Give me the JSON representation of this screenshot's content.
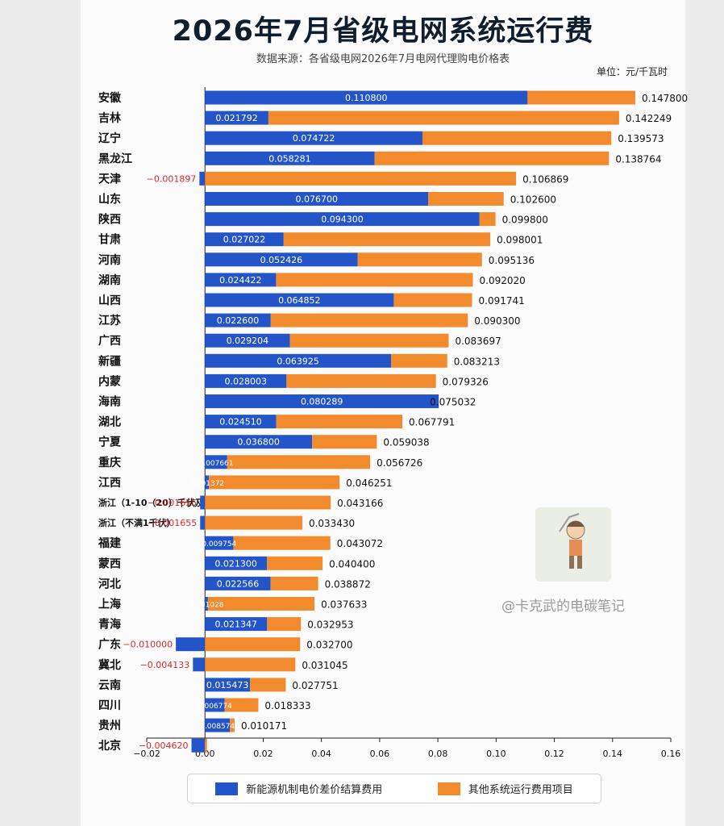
{
  "chart_data": {
    "type": "bar",
    "stacked": true,
    "orientation": "horizontal",
    "title": "2026年7月省级电网系统运行费",
    "subtitle": "数据来源：各省级电网2026年7月电网代理购电价格表",
    "unit_label": "单位：元/千瓦时",
    "categories": [
      "安徽",
      "吉林",
      "辽宁",
      "黑龙江",
      "天津",
      "山东",
      "陕西",
      "甘肃",
      "河南",
      "湖南",
      "山西",
      "江苏",
      "广西",
      "新疆",
      "内蒙",
      "海南",
      "湖北",
      "宁夏",
      "重庆",
      "江西",
      "浙江（1-10（20）千伏及以上）",
      "浙江（不满1千伏）",
      "福建",
      "蒙西",
      "河北",
      "上海",
      "青海",
      "广东",
      "冀北",
      "云南",
      "四川",
      "贵州",
      "北京"
    ],
    "series": [
      {
        "name": "新能源机制电价差价结算费用",
        "values": [
          0.1108,
          0.021792,
          0.074722,
          0.058281,
          -0.001897,
          0.0767,
          0.0943,
          0.027022,
          0.052426,
          0.024422,
          0.064852,
          0.0226,
          0.029204,
          0.063925,
          0.028003,
          0.080289,
          0.02451,
          0.0368,
          0.007661,
          0.001372,
          -0.001655,
          -0.001655,
          0.009754,
          0.0213,
          0.022566,
          0.001028,
          0.021347,
          -0.01,
          -0.004133,
          0.015473,
          0.006774,
          0.008574,
          -0.00462
        ],
        "labels": [
          "0.110800",
          "0.021792",
          "0.074722",
          "0.058281",
          "-0.001897",
          "0.076700",
          "0.094300",
          "0.027022",
          "0.052426",
          "0.024422",
          "0.064852",
          "0.022600",
          "0.029204",
          "0.063925",
          "0.028003",
          "0.080289",
          "0.024510",
          "0.036800",
          "0.007661",
          "0.001372",
          "-0.001655",
          "-0.001655",
          "0.009754",
          "0.021300",
          "0.022566",
          "0.001028",
          "0.021347",
          "-0.010000",
          "-0.004133",
          "0.015473",
          "0.006774",
          "0.008574",
          "-0.004620"
        ]
      },
      {
        "name": "其他系统运行费用项目"
      }
    ],
    "totals": [
      0.1478,
      0.142249,
      0.139573,
      0.138764,
      0.106869,
      0.1026,
      0.0998,
      0.098001,
      0.095136,
      0.09202,
      0.091741,
      0.0903,
      0.083697,
      0.083213,
      0.079326,
      0.075032,
      0.067791,
      0.059038,
      0.056726,
      0.046251,
      0.043166,
      0.03343,
      0.043072,
      0.0404,
      0.038872,
      0.037633,
      0.032953,
      0.0327,
      0.031045,
      0.027751,
      0.018333,
      0.010171,
      0.0007
    ],
    "total_labels": [
      "0.147800",
      "0.142249",
      "0.139573",
      "0.138764",
      "0.106869",
      "0.102600",
      "0.099800",
      "0.098001",
      "0.095136",
      "0.092020",
      "0.091741",
      "0.090300",
      "0.083697",
      "0.083213",
      "0.079326",
      "0.075032",
      "0.067791",
      "0.059038",
      "0.056726",
      "0.046251",
      "0.043166",
      "0.033430",
      "0.043072",
      "0.040400",
      "0.038872",
      "0.037633",
      "0.032953",
      "0.032700",
      "0.031045",
      "0.027751",
      "0.018333",
      "0.010171",
      ""
    ],
    "xlim": [
      -0.02,
      0.16
    ],
    "xticks": [
      -0.02,
      0.0,
      0.02,
      0.04,
      0.06,
      0.08,
      0.1,
      0.12,
      0.14,
      0.16
    ],
    "xtick_labels": [
      "−0.02",
      "0.00",
      "0.02",
      "0.04",
      "0.06",
      "0.08",
      "0.10",
      "0.12",
      "0.14",
      "0.16"
    ],
    "grid": false,
    "legend_position": "bottom-center",
    "colors": {
      "new_energy": "#2355c8",
      "other": "#f28a2e",
      "negative_label": "#d62b2b"
    }
  },
  "watermark": "@卡克武的电碳笔记"
}
